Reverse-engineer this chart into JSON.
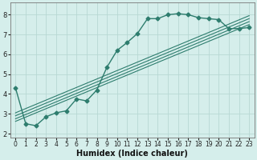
{
  "title": "",
  "xlabel": "Humidex (Indice chaleur)",
  "ylabel": "",
  "bg_color": "#d5eeeb",
  "line_color": "#2e7d6e",
  "grid_color": "#b8d8d4",
  "xlim": [
    -0.5,
    23.5
  ],
  "ylim": [
    1.8,
    8.6
  ],
  "yticks": [
    2,
    3,
    4,
    5,
    6,
    7,
    8
  ],
  "xticks": [
    0,
    1,
    2,
    3,
    4,
    5,
    6,
    7,
    8,
    9,
    10,
    11,
    12,
    13,
    14,
    15,
    16,
    17,
    18,
    19,
    20,
    21,
    22,
    23
  ],
  "main_series": {
    "x": [
      0,
      1,
      2,
      3,
      4,
      5,
      6,
      7,
      8,
      9,
      10,
      11,
      12,
      13,
      14,
      15,
      16,
      17,
      18,
      19,
      20,
      21,
      22,
      23
    ],
    "y": [
      4.3,
      2.5,
      2.4,
      2.85,
      3.05,
      3.15,
      3.75,
      3.65,
      4.2,
      5.35,
      6.2,
      6.6,
      7.05,
      7.8,
      7.8,
      8.0,
      8.05,
      8.0,
      7.85,
      7.8,
      7.75,
      7.3,
      7.3,
      7.35
    ],
    "marker": "D",
    "markersize": 2.5,
    "linewidth": 1.0
  },
  "straight_lines": [
    {
      "x0": 0,
      "y0": 2.62,
      "x1": 23,
      "y1": 7.5
    },
    {
      "x0": 0,
      "y0": 2.75,
      "x1": 23,
      "y1": 7.65
    },
    {
      "x0": 0,
      "y0": 2.9,
      "x1": 23,
      "y1": 7.8
    },
    {
      "x0": 0,
      "y0": 3.05,
      "x1": 23,
      "y1": 7.95
    }
  ],
  "tick_fontsize": 5.5,
  "xlabel_fontsize": 7
}
